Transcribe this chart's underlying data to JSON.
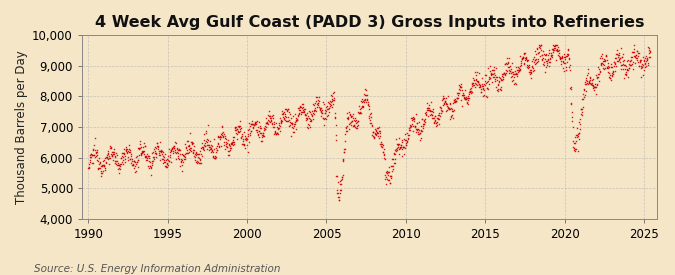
{
  "title": "4 Week Avg Gulf Coast (PADD 3) Gross Inputs into Refineries",
  "ylabel": "Thousand Barrels per Day",
  "source_text": "Source: U.S. Energy Information Administration",
  "xlim": [
    1989.6,
    2025.8
  ],
  "ylim": [
    4000,
    10000
  ],
  "yticks": [
    4000,
    5000,
    6000,
    7000,
    8000,
    9000,
    10000
  ],
  "xticks": [
    1990,
    1995,
    2000,
    2005,
    2010,
    2015,
    2020,
    2025
  ],
  "background_color": "#f5e6c8",
  "plot_bg_color": "#f5e6c8",
  "grid_color": "#aaaaaa",
  "dot_color": "#cc0000",
  "title_fontsize": 11.5,
  "label_fontsize": 8.5,
  "tick_fontsize": 8.5,
  "source_fontsize": 7.5
}
